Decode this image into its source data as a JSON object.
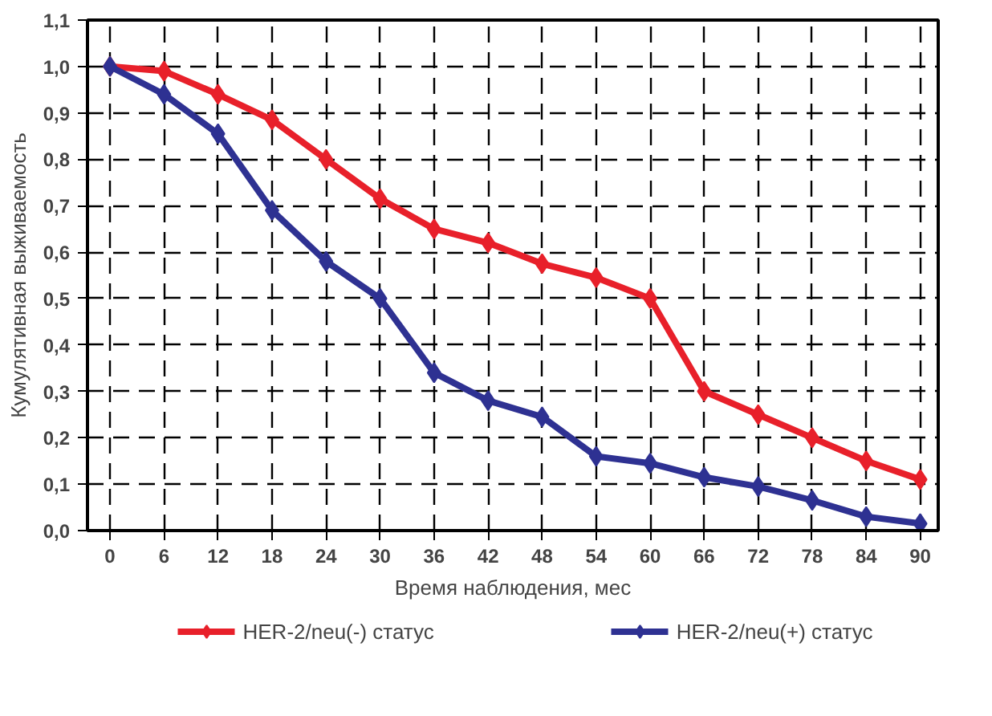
{
  "chart_data": {
    "type": "line",
    "xlabel": "Время наблюдения, мес",
    "ylabel": "Кумулятивная выживаемость",
    "x": [
      0,
      6,
      12,
      18,
      24,
      30,
      36,
      42,
      48,
      54,
      60,
      66,
      72,
      78,
      84,
      90
    ],
    "xlim": [
      -2.5,
      92
    ],
    "xticks": [
      0,
      6,
      12,
      18,
      24,
      30,
      36,
      42,
      48,
      54,
      60,
      66,
      72,
      78,
      84,
      90
    ],
    "ylim": [
      0,
      1.1
    ],
    "yticks": [
      {
        "value": 0,
        "label": "0,0"
      },
      {
        "value": 0.1,
        "label": "0,1"
      },
      {
        "value": 0.2,
        "label": "0,2"
      },
      {
        "value": 0.3,
        "label": "0,3"
      },
      {
        "value": 0.4,
        "label": "0,4"
      },
      {
        "value": 0.5,
        "label": "0,5"
      },
      {
        "value": 0.6,
        "label": "0,6"
      },
      {
        "value": 0.7,
        "label": "0,7"
      },
      {
        "value": 0.8,
        "label": "0,8"
      },
      {
        "value": 0.9,
        "label": "0,9"
      },
      {
        "value": 1.0,
        "label": "1,0"
      },
      {
        "value": 1.1,
        "label": "1,1"
      }
    ],
    "grid": true,
    "legend": "bottom",
    "marker": "diamond",
    "line_style": "solid",
    "series": [
      {
        "name": "HER-2/neu(-) статус",
        "color": "#e8202a",
        "values": [
          1.0,
          0.99,
          0.94,
          0.885,
          0.8,
          0.715,
          0.65,
          0.62,
          0.575,
          0.545,
          0.5,
          0.3,
          0.25,
          0.2,
          0.15,
          0.11
        ]
      },
      {
        "name": "HER-2/neu(+) статус",
        "color": "#2e3192",
        "values": [
          1.0,
          0.94,
          0.855,
          0.69,
          0.58,
          0.5,
          0.34,
          0.28,
          0.245,
          0.16,
          0.145,
          0.115,
          0.095,
          0.065,
          0.03,
          0.015
        ]
      }
    ]
  }
}
